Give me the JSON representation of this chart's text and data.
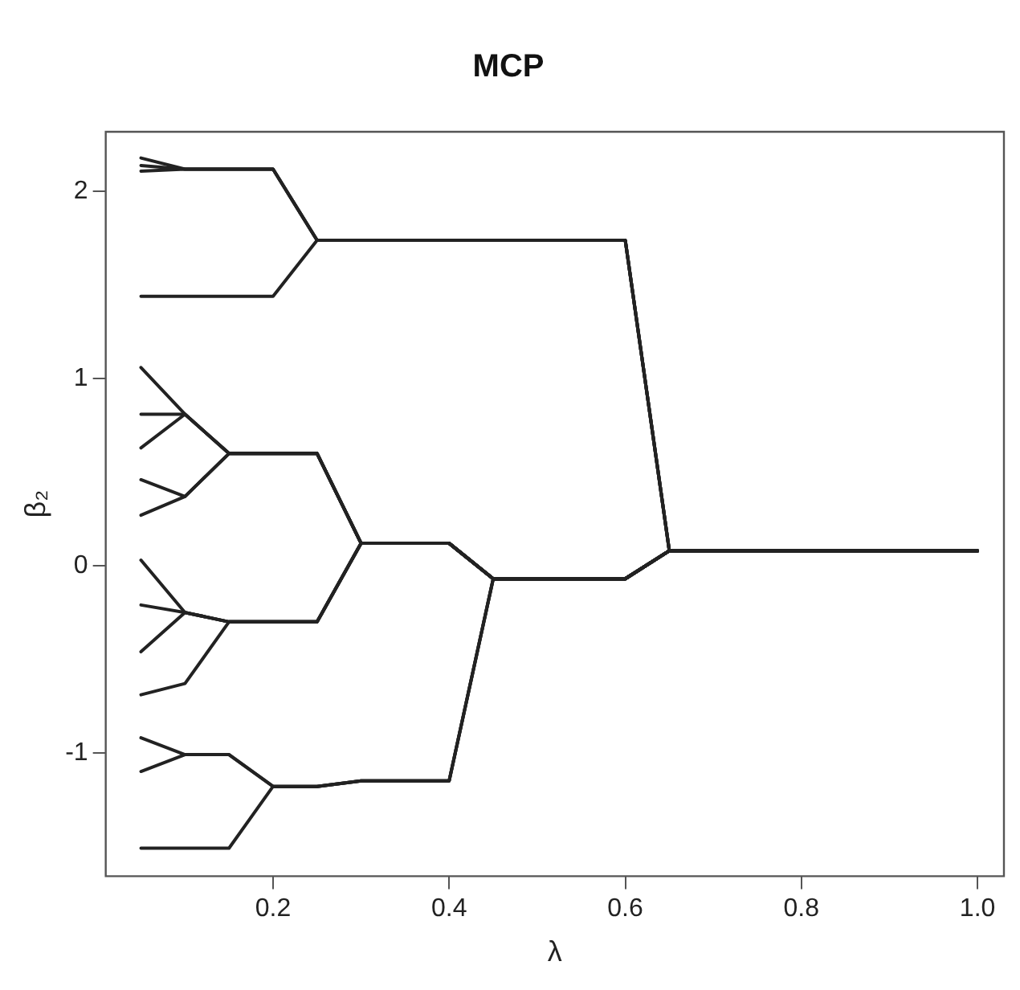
{
  "chart_data": {
    "type": "line",
    "title": "MCP",
    "xlabel": "λ",
    "ylabel": "β₂",
    "x": [
      0.05,
      0.1,
      0.15,
      0.2,
      0.25,
      0.3,
      0.35,
      0.4,
      0.45,
      0.5,
      0.55,
      0.6,
      0.65,
      0.7,
      0.75,
      0.8,
      0.85,
      0.9,
      0.95,
      1.0
    ],
    "series": [
      {
        "color": "#222222",
        "values": [
          2.18,
          2.12,
          2.12,
          2.12,
          1.74,
          1.74,
          1.74,
          1.74,
          1.74,
          1.74,
          1.74,
          1.74,
          0.08,
          0.08,
          0.08,
          0.08,
          0.08,
          0.08,
          0.08,
          0.08
        ]
      },
      {
        "color": "#222222",
        "values": [
          2.14,
          2.12,
          2.12,
          2.12,
          1.74,
          1.74,
          1.74,
          1.74,
          1.74,
          1.74,
          1.74,
          1.74,
          0.08,
          0.08,
          0.08,
          0.08,
          0.08,
          0.08,
          0.08,
          0.08
        ]
      },
      {
        "color": "#222222",
        "values": [
          2.11,
          2.12,
          2.12,
          2.12,
          1.74,
          1.74,
          1.74,
          1.74,
          1.74,
          1.74,
          1.74,
          1.74,
          0.08,
          0.08,
          0.08,
          0.08,
          0.08,
          0.08,
          0.08,
          0.08
        ]
      },
      {
        "color": "#222222",
        "values": [
          1.44,
          1.44,
          1.44,
          1.44,
          1.74,
          1.74,
          1.74,
          1.74,
          1.74,
          1.74,
          1.74,
          1.74,
          0.08,
          0.08,
          0.08,
          0.08,
          0.08,
          0.08,
          0.08,
          0.08
        ]
      },
      {
        "color": "#222222",
        "values": [
          1.06,
          0.81,
          0.6,
          0.6,
          0.6,
          0.12,
          0.12,
          0.12,
          -0.07,
          -0.07,
          -0.07,
          -0.07,
          0.08,
          0.08,
          0.08,
          0.08,
          0.08,
          0.08,
          0.08,
          0.08
        ]
      },
      {
        "color": "#222222",
        "values": [
          0.81,
          0.81,
          0.6,
          0.6,
          0.6,
          0.12,
          0.12,
          0.12,
          -0.07,
          -0.07,
          -0.07,
          -0.07,
          0.08,
          0.08,
          0.08,
          0.08,
          0.08,
          0.08,
          0.08,
          0.08
        ]
      },
      {
        "color": "#222222",
        "values": [
          0.63,
          0.81,
          0.6,
          0.6,
          0.6,
          0.12,
          0.12,
          0.12,
          -0.07,
          -0.07,
          -0.07,
          -0.07,
          0.08,
          0.08,
          0.08,
          0.08,
          0.08,
          0.08,
          0.08,
          0.08
        ]
      },
      {
        "color": "#222222",
        "values": [
          0.46,
          0.37,
          0.6,
          0.6,
          0.6,
          0.12,
          0.12,
          0.12,
          -0.07,
          -0.07,
          -0.07,
          -0.07,
          0.08,
          0.08,
          0.08,
          0.08,
          0.08,
          0.08,
          0.08,
          0.08
        ]
      },
      {
        "color": "#222222",
        "values": [
          0.27,
          0.37,
          0.6,
          0.6,
          0.6,
          0.12,
          0.12,
          0.12,
          -0.07,
          -0.07,
          -0.07,
          -0.07,
          0.08,
          0.08,
          0.08,
          0.08,
          0.08,
          0.08,
          0.08,
          0.08
        ]
      },
      {
        "color": "#222222",
        "values": [
          0.03,
          -0.25,
          -0.3,
          -0.3,
          -0.3,
          0.12,
          0.12,
          0.12,
          -0.07,
          -0.07,
          -0.07,
          -0.07,
          0.08,
          0.08,
          0.08,
          0.08,
          0.08,
          0.08,
          0.08,
          0.08
        ]
      },
      {
        "color": "#222222",
        "values": [
          -0.21,
          -0.25,
          -0.3,
          -0.3,
          -0.3,
          0.12,
          0.12,
          0.12,
          -0.07,
          -0.07,
          -0.07,
          -0.07,
          0.08,
          0.08,
          0.08,
          0.08,
          0.08,
          0.08,
          0.08,
          0.08
        ]
      },
      {
        "color": "#222222",
        "values": [
          -0.46,
          -0.25,
          -0.3,
          -0.3,
          -0.3,
          0.12,
          0.12,
          0.12,
          -0.07,
          -0.07,
          -0.07,
          -0.07,
          0.08,
          0.08,
          0.08,
          0.08,
          0.08,
          0.08,
          0.08,
          0.08
        ]
      },
      {
        "color": "#222222",
        "values": [
          -0.69,
          -0.63,
          -0.3,
          -0.3,
          -0.3,
          0.12,
          0.12,
          0.12,
          -0.07,
          -0.07,
          -0.07,
          -0.07,
          0.08,
          0.08,
          0.08,
          0.08,
          0.08,
          0.08,
          0.08,
          0.08
        ]
      },
      {
        "color": "#222222",
        "values": [
          -0.92,
          -1.01,
          -1.01,
          -1.18,
          -1.18,
          -1.15,
          -1.15,
          -1.15,
          -0.07,
          -0.07,
          -0.07,
          -0.07,
          0.08,
          0.08,
          0.08,
          0.08,
          0.08,
          0.08,
          0.08,
          0.08
        ]
      },
      {
        "color": "#222222",
        "values": [
          -1.1,
          -1.01,
          -1.01,
          -1.18,
          -1.18,
          -1.15,
          -1.15,
          -1.15,
          -0.07,
          -0.07,
          -0.07,
          -0.07,
          0.08,
          0.08,
          0.08,
          0.08,
          0.08,
          0.08,
          0.08,
          0.08
        ]
      },
      {
        "color": "#222222",
        "values": [
          -1.51,
          -1.51,
          -1.51,
          -1.18,
          -1.18,
          -1.15,
          -1.15,
          -1.15,
          -0.07,
          -0.07,
          -0.07,
          -0.07,
          0.08,
          0.08,
          0.08,
          0.08,
          0.08,
          0.08,
          0.08,
          0.08
        ]
      }
    ],
    "xlim": [
      0.01,
      1.03
    ],
    "ylim": [
      -1.66,
      2.32
    ],
    "xticks": [
      0.2,
      0.4,
      0.6,
      0.8,
      {
        "value": 1,
        "label": "1.0"
      }
    ],
    "yticks": [
      -1,
      0,
      1,
      2
    ],
    "grid": false,
    "legend": false,
    "marker": "none",
    "line_style": "solid"
  }
}
